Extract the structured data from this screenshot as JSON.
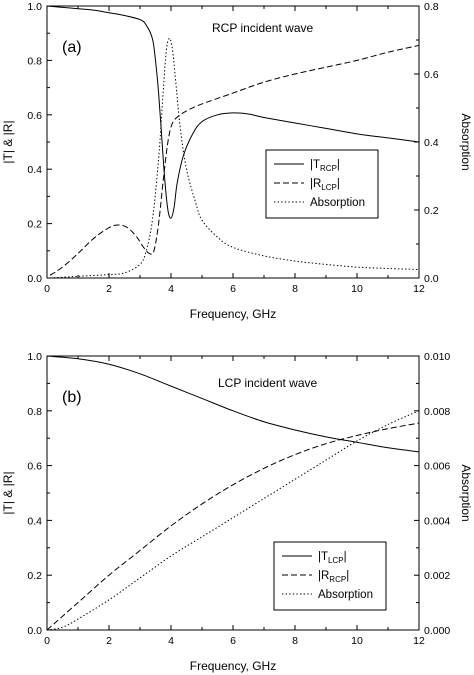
{
  "chart_data": [
    {
      "type": "line",
      "panel_label": "(a)",
      "annotation": "RCP incident wave",
      "xlabel": "Frequency, GHz",
      "ylabel": "|T| & |R|",
      "y2label": "Absorption",
      "xlim": [
        0,
        12
      ],
      "ylim": [
        0,
        1.0
      ],
      "y2lim": [
        0,
        0.8
      ],
      "xticks": [
        "0",
        "2",
        "4",
        "6",
        "8",
        "10",
        "12"
      ],
      "yticks": [
        "0.0",
        "0.2",
        "0.4",
        "0.6",
        "0.8",
        "1.0"
      ],
      "y2ticks": [
        "0.0",
        "0.2",
        "0.4",
        "0.6",
        "0.8"
      ],
      "legend_position": "center-right",
      "series": [
        {
          "name_main": "|T",
          "name_sub": "RCP",
          "name_end": "|",
          "style": "solid",
          "axis": "left",
          "x": [
            0,
            0.5,
            1,
            1.5,
            2,
            2.5,
            3,
            3.2,
            3.4,
            3.5,
            3.6,
            3.7,
            3.8,
            3.9,
            4.0,
            4.1,
            4.2,
            4.4,
            4.7,
            5,
            5.5,
            6,
            6.5,
            7,
            8,
            9,
            10,
            11,
            12
          ],
          "y": [
            1.0,
            0.995,
            0.99,
            0.985,
            0.975,
            0.965,
            0.95,
            0.93,
            0.88,
            0.8,
            0.68,
            0.52,
            0.36,
            0.25,
            0.22,
            0.26,
            0.35,
            0.45,
            0.53,
            0.575,
            0.6,
            0.607,
            0.603,
            0.59,
            0.57,
            0.55,
            0.53,
            0.515,
            0.5
          ]
        },
        {
          "name_main": "|R",
          "name_sub": "LCP",
          "name_end": "|",
          "style": "dashed",
          "axis": "left",
          "x": [
            0.1,
            0.5,
            1,
            1.5,
            2,
            2.3,
            2.6,
            2.9,
            3.1,
            3.3,
            3.45,
            3.6,
            3.75,
            3.9,
            4.05,
            4.3,
            4.6,
            5,
            6,
            7,
            8,
            9,
            10,
            11,
            12
          ],
          "y": [
            0.01,
            0.04,
            0.09,
            0.145,
            0.185,
            0.195,
            0.185,
            0.15,
            0.115,
            0.09,
            0.1,
            0.2,
            0.36,
            0.5,
            0.57,
            0.6,
            0.62,
            0.64,
            0.68,
            0.72,
            0.75,
            0.775,
            0.8,
            0.83,
            0.855
          ]
        },
        {
          "name_main": "Absorption",
          "name_sub": "",
          "name_end": "",
          "style": "dotted",
          "axis": "right",
          "x": [
            0.1,
            1,
            2,
            2.5,
            3,
            3.2,
            3.4,
            3.6,
            3.75,
            3.85,
            3.95,
            4.05,
            4.15,
            4.3,
            4.5,
            4.8,
            5,
            5.5,
            6,
            7,
            8,
            9,
            10,
            11,
            12
          ],
          "y": [
            0.0,
            0.005,
            0.01,
            0.015,
            0.04,
            0.08,
            0.17,
            0.35,
            0.55,
            0.67,
            0.705,
            0.67,
            0.58,
            0.44,
            0.32,
            0.22,
            0.17,
            0.12,
            0.09,
            0.065,
            0.05,
            0.04,
            0.032,
            0.028,
            0.025
          ]
        }
      ]
    },
    {
      "type": "line",
      "panel_label": "(b)",
      "annotation": "LCP incident wave",
      "xlabel": "Frequency, GHz",
      "ylabel": "|T| & |R|",
      "y2label": "Absorption",
      "xlim": [
        0,
        12
      ],
      "ylim": [
        0,
        1.0
      ],
      "y2lim": [
        0,
        0.01
      ],
      "xticks": [
        "0",
        "2",
        "4",
        "6",
        "8",
        "10",
        "12"
      ],
      "yticks": [
        "0.0",
        "0.2",
        "0.4",
        "0.6",
        "0.8",
        "1.0"
      ],
      "y2ticks": [
        "0.000",
        "0.002",
        "0.004",
        "0.006",
        "0.008",
        "0.010"
      ],
      "legend_position": "bottom-right",
      "series": [
        {
          "name_main": "|T",
          "name_sub": "LCP",
          "name_end": "|",
          "style": "solid",
          "axis": "left",
          "x": [
            0,
            1,
            2,
            3,
            4,
            5,
            6,
            7,
            8,
            9,
            10,
            11,
            12
          ],
          "y": [
            1.0,
            0.99,
            0.97,
            0.935,
            0.89,
            0.845,
            0.8,
            0.76,
            0.73,
            0.705,
            0.685,
            0.665,
            0.65
          ]
        },
        {
          "name_main": "|R",
          "name_sub": "RCP",
          "name_end": "|",
          "style": "dashed",
          "axis": "left",
          "x": [
            0,
            1,
            2,
            3,
            4,
            5,
            6,
            7,
            8,
            9,
            10,
            11,
            12
          ],
          "y": [
            0.0,
            0.1,
            0.2,
            0.29,
            0.38,
            0.46,
            0.53,
            0.59,
            0.64,
            0.68,
            0.71,
            0.735,
            0.755
          ]
        },
        {
          "name_main": "Absorption",
          "name_sub": "",
          "name_end": "",
          "style": "dotted",
          "axis": "right",
          "x": [
            0,
            0.5,
            1,
            2,
            3,
            4,
            5,
            6,
            7,
            8,
            9,
            10,
            11,
            12
          ],
          "y": [
            0.0,
            0.0001,
            0.0004,
            0.0011,
            0.0019,
            0.0027,
            0.0034,
            0.0041,
            0.0048,
            0.0055,
            0.0062,
            0.0069,
            0.0075,
            0.008
          ]
        }
      ]
    }
  ]
}
